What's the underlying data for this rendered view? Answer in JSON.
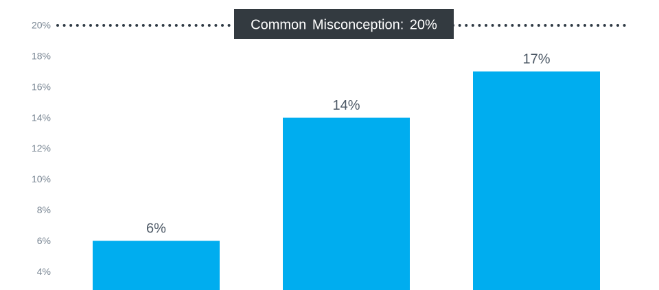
{
  "chart_data": {
    "type": "bar",
    "categories": [
      null,
      null,
      null
    ],
    "values": [
      6,
      14,
      17
    ],
    "value_labels": [
      "6%",
      "14%",
      "17%"
    ],
    "color": "#00adef",
    "ylim": [
      2.8,
      20
    ],
    "yticks": [
      {
        "value": 4,
        "label": "4%"
      },
      {
        "value": 6,
        "label": "6%"
      },
      {
        "value": 8,
        "label": "8%"
      },
      {
        "value": 10,
        "label": "10%"
      },
      {
        "value": 12,
        "label": "12%"
      },
      {
        "value": 14,
        "label": "14%"
      },
      {
        "value": 16,
        "label": "16%"
      },
      {
        "value": 18,
        "label": "18%"
      },
      {
        "value": 20,
        "label": "20%"
      }
    ],
    "reference_line": {
      "value": 20,
      "label": "Common Misconception: 20%"
    },
    "grid": false
  }
}
